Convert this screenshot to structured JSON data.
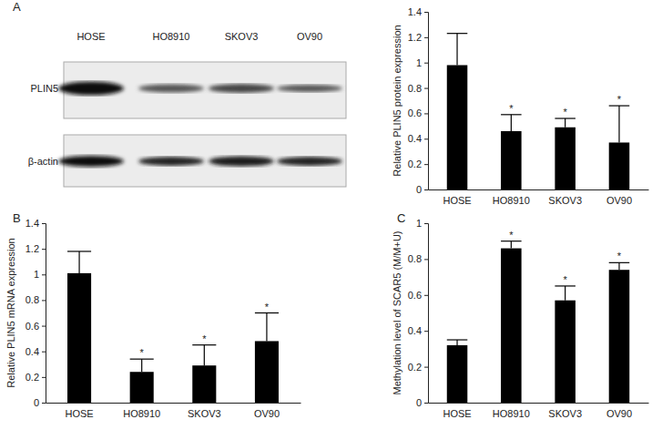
{
  "chart_data": [
    {
      "type": "bar",
      "y_label": "Relative PLIN5 protein expression",
      "categories": [
        "HOSE",
        "HO8910",
        "SKOV3",
        "OV90"
      ],
      "values": [
        0.98,
        0.46,
        0.49,
        0.37
      ],
      "errors": [
        0.25,
        0.13,
        0.07,
        0.29
      ],
      "significance": [
        null,
        "*",
        "*",
        "*"
      ],
      "color": "#000000",
      "ylim": [
        0,
        1.4
      ],
      "yticks": [
        0,
        0.2,
        0.4,
        0.6,
        0.8,
        1,
        1.2,
        1.4
      ]
    },
    {
      "type": "bar",
      "y_label": "Relative PLIN5 mRNA expression",
      "categories": [
        "HOSE",
        "HO8910",
        "SKOV3",
        "OV90"
      ],
      "values": [
        1.01,
        0.24,
        0.29,
        0.48
      ],
      "errors": [
        0.17,
        0.1,
        0.16,
        0.22
      ],
      "significance": [
        null,
        "*",
        "*",
        "*"
      ],
      "color": "#000000",
      "ylim": [
        0,
        1.4
      ],
      "yticks": [
        0,
        0.2,
        0.4,
        0.6,
        0.8,
        1,
        1.2,
        1.4
      ]
    },
    {
      "type": "bar",
      "y_label": "Methylation level of SCAR5 (M/M+U)",
      "categories": [
        "HOSE",
        "HO8910",
        "SKOV3",
        "OV90"
      ],
      "values": [
        0.32,
        0.86,
        0.57,
        0.74
      ],
      "errors": [
        0.03,
        0.04,
        0.08,
        0.04
      ],
      "significance": [
        null,
        "*",
        "*",
        "*"
      ],
      "color": "#000000",
      "ylim": [
        0,
        1
      ],
      "yticks": [
        0,
        0.2,
        0.4,
        0.6,
        0.8,
        1
      ]
    }
  ],
  "panel_labels": [
    "A",
    "B",
    "C"
  ],
  "blot": {
    "lanes": [
      "HOSE",
      "HO8910",
      "SKOV3",
      "OV90"
    ],
    "rows": [
      "PLIN5",
      "β-actin"
    ]
  }
}
